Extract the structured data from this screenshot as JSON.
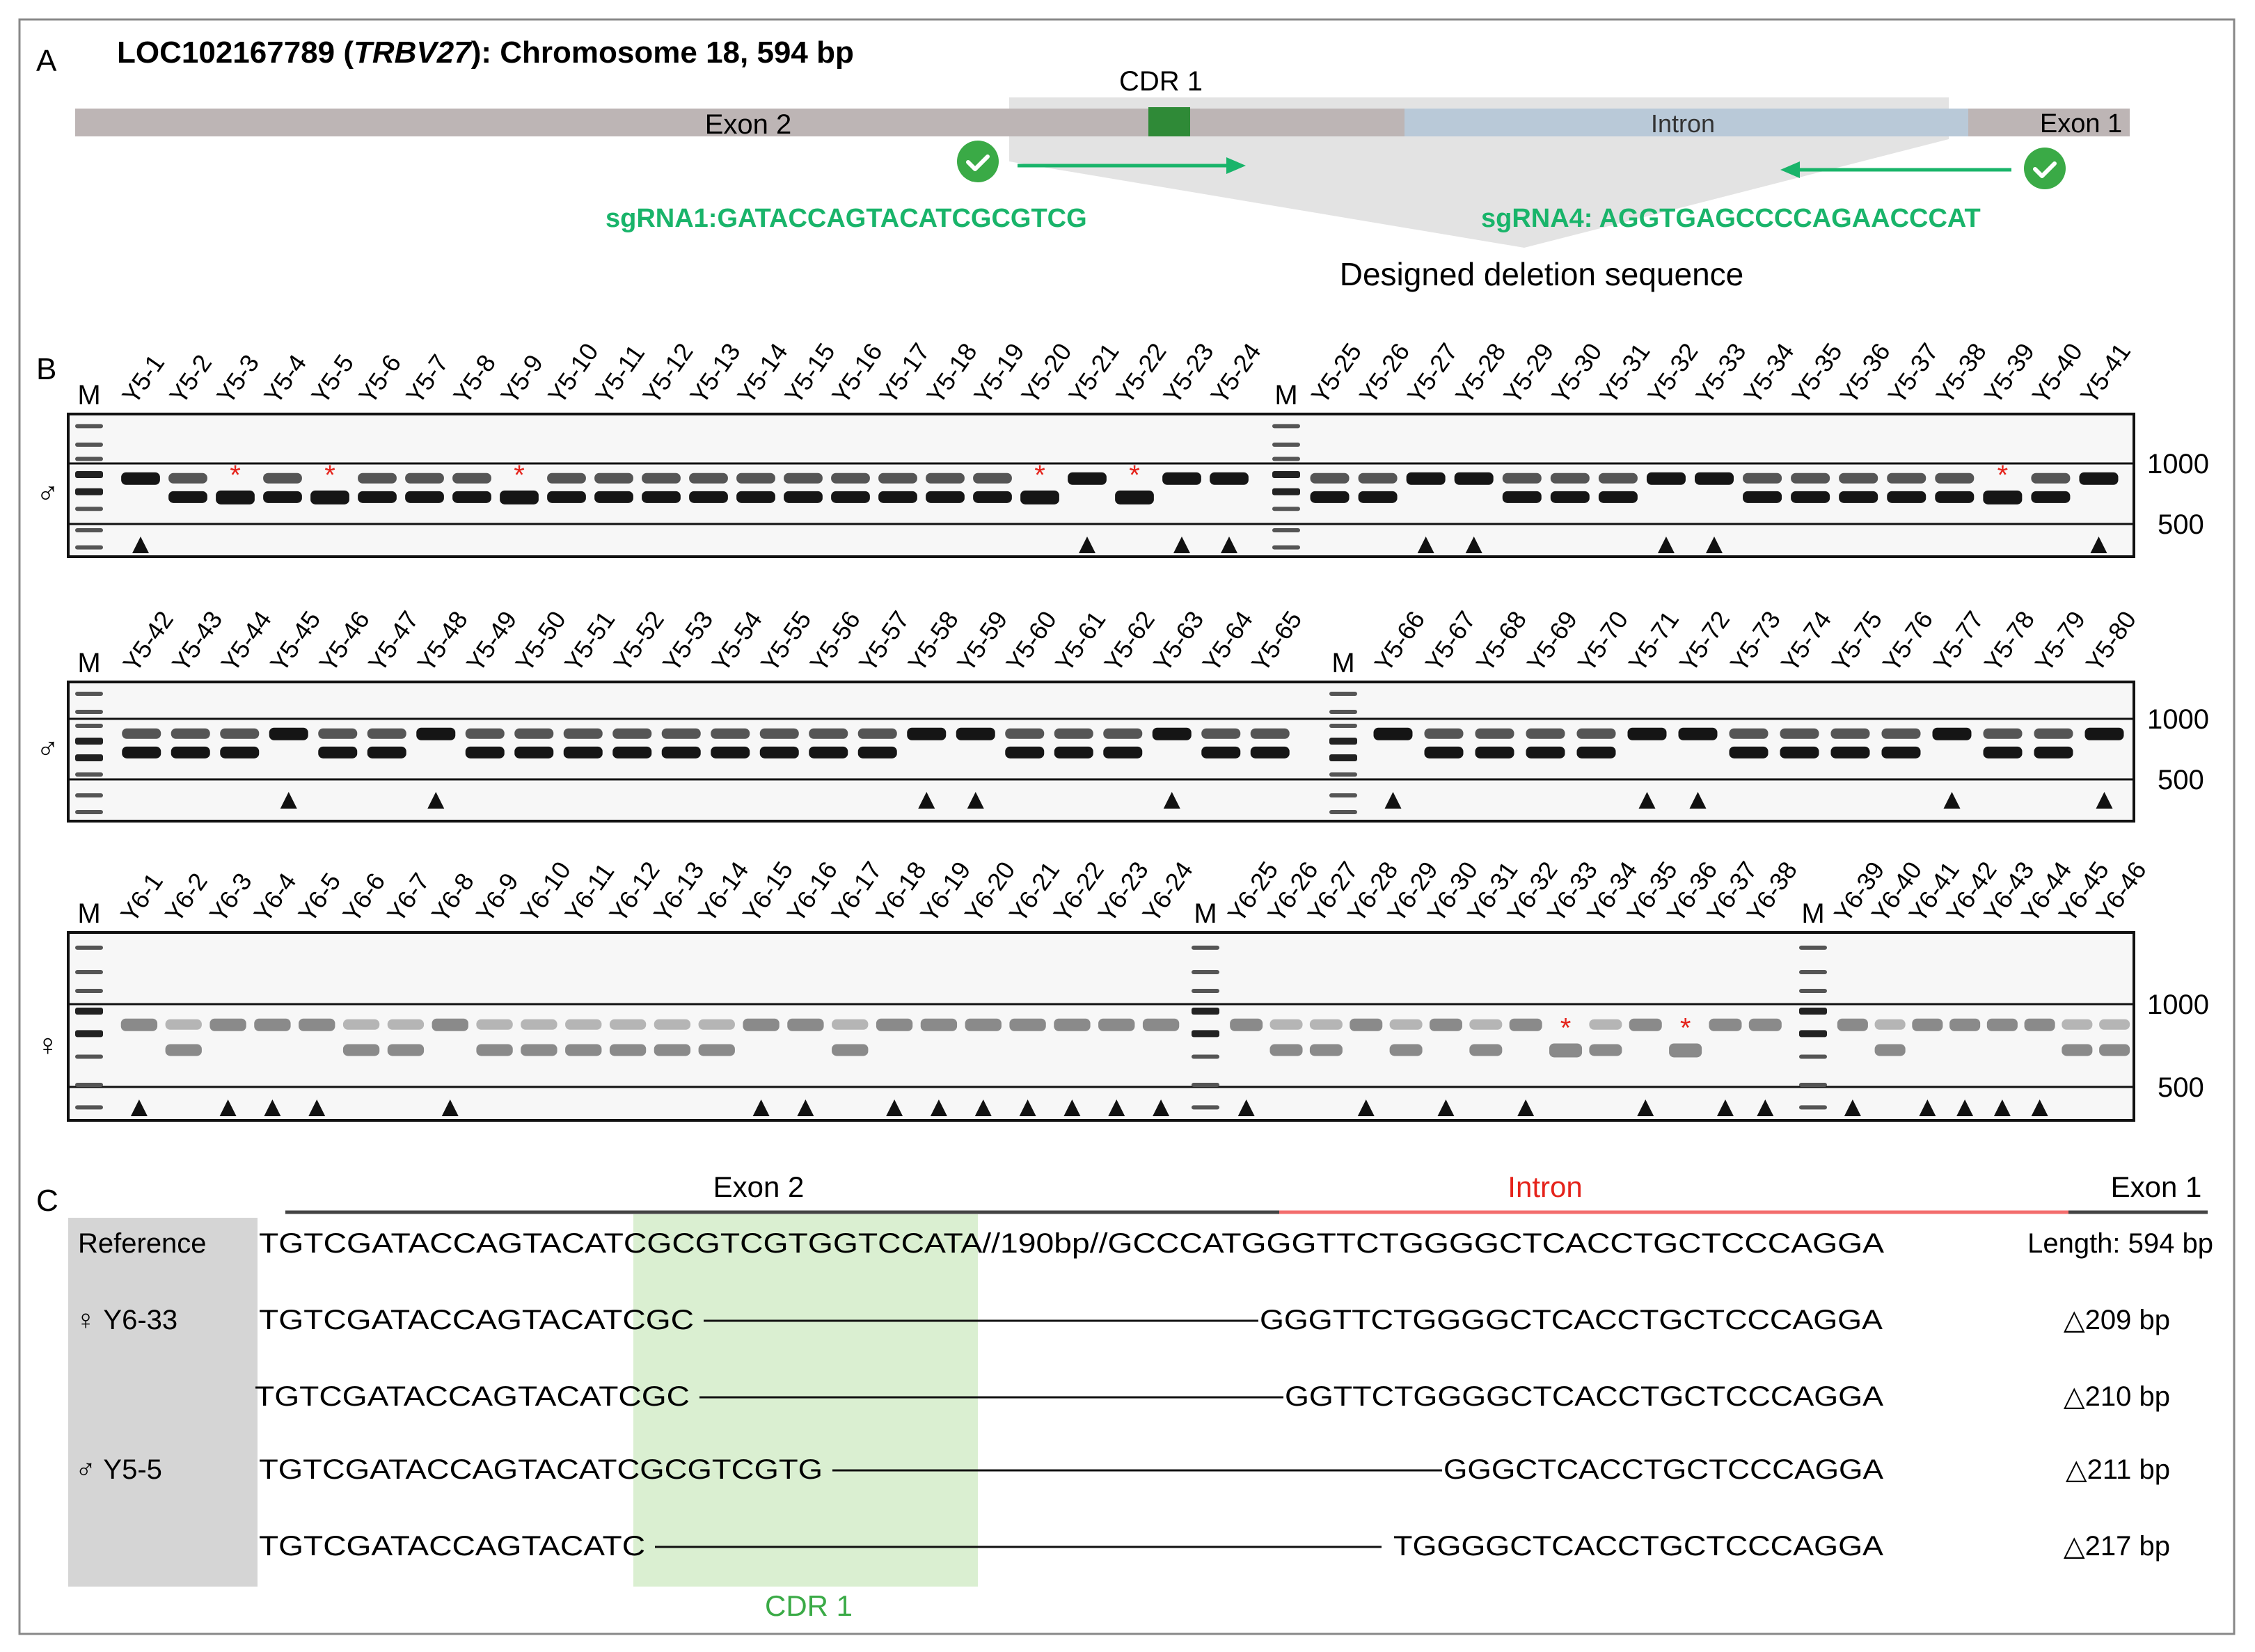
{
  "colors": {
    "sgrna_green": "#19b46a",
    "cdr_dark_green": "#2f8a37",
    "cdr_highlight": "#d4ecc9",
    "exon_gray": "#bdb5b5",
    "intron_blue": "#b9c9d8",
    "intron_red": "#f36d6d",
    "marker_red": "#e5231b"
  },
  "panel_a": {
    "label": "A",
    "title_prefix": "LOC102167789 (",
    "title_gene": "TRBV27",
    "title_suffix": "): Chromosome 18, 594 bp",
    "cdr_label": "CDR 1",
    "exon2_label": "Exon 2",
    "intron_label": "Intron",
    "exon1_label": "Exon 1",
    "sgrna1": "sgRNA1:GATACCAGTACATCGCGTCG",
    "sgrna4": "sgRNA4: AGGTGAGCCCCAGAACCCAT",
    "deletion_label": "Designed deletion sequence",
    "check_icon": "check-circle-icon"
  },
  "panel_b": {
    "label": "B",
    "marker_label": "M",
    "size_1000": "1000",
    "size_500": "500",
    "rows": [
      {
        "sex": "♂",
        "halves": [
          {
            "lanes": [
              "Y5-1",
              "Y5-2",
              "Y5-3",
              "Y5-4",
              "Y5-5",
              "Y5-6",
              "Y5-7",
              "Y5-8",
              "Y5-9",
              "Y5-10",
              "Y5-11",
              "Y5-12",
              "Y5-13",
              "Y5-14",
              "Y5-15",
              "Y5-16",
              "Y5-17",
              "Y5-18",
              "Y5-19",
              "Y5-20",
              "Y5-21",
              "Y5-22",
              "Y5-23",
              "Y5-24"
            ],
            "star_lanes": [
              3,
              5,
              9,
              20,
              22
            ],
            "triangle_lanes": [
              1,
              21,
              23,
              24
            ]
          },
          {
            "lanes": [
              "Y5-25",
              "Y5-26",
              "Y5-27",
              "Y5-28",
              "Y5-29",
              "Y5-30",
              "Y5-31",
              "Y5-32",
              "Y5-33",
              "Y5-34",
              "Y5-35",
              "Y5-36",
              "Y5-37",
              "Y5-38",
              "Y5-39",
              "Y5-40",
              "Y5-41"
            ],
            "star_lanes": [
              39
            ],
            "triangle_lanes": [
              27,
              28,
              32,
              33,
              41
            ]
          }
        ]
      },
      {
        "sex": "♂",
        "halves": [
          {
            "lanes": [
              "Y5-42",
              "Y5-43",
              "Y5-44",
              "Y5-45",
              "Y5-46",
              "Y5-47",
              "Y5-48",
              "Y5-49",
              "Y5-50",
              "Y5-51",
              "Y5-52",
              "Y5-53",
              "Y5-54",
              "Y5-55",
              "Y5-56",
              "Y5-57",
              "Y5-58",
              "Y5-59",
              "Y5-60",
              "Y5-61",
              "Y5-62",
              "Y5-63",
              "Y5-64",
              "Y5-65"
            ],
            "star_lanes": [],
            "triangle_lanes": [
              45,
              48,
              58,
              59,
              63
            ]
          },
          {
            "lanes": [
              "Y5-66",
              "Y5-67",
              "Y5-68",
              "Y5-69",
              "Y5-70",
              "Y5-71",
              "Y5-72",
              "Y5-73",
              "Y5-74",
              "Y5-75",
              "Y5-76",
              "Y5-77",
              "Y5-78",
              "Y5-79",
              "Y5-80"
            ],
            "star_lanes": [],
            "triangle_lanes": [
              66,
              71,
              72,
              77,
              80
            ]
          }
        ]
      },
      {
        "sex": "♀",
        "halves": [
          {
            "lanes": [
              "Y6-1",
              "Y6-2",
              "Y6-3",
              "Y6-4",
              "Y6-5",
              "Y6-6",
              "Y6-7",
              "Y6-8",
              "Y6-9",
              "Y6-10",
              "Y6-11",
              "Y6-12",
              "Y6-13",
              "Y6-14",
              "Y6-15",
              "Y6-16",
              "Y6-17",
              "Y6-18",
              "Y6-19",
              "Y6-20",
              "Y6-21",
              "Y6-22",
              "Y6-23",
              "Y6-24"
            ],
            "star_lanes": [],
            "triangle_lanes": [
              1,
              3,
              4,
              5,
              8,
              15,
              16,
              18,
              19,
              20,
              21,
              22,
              23,
              24
            ]
          },
          {
            "lanes": [
              "Y6-25",
              "Y6-26",
              "Y6-27",
              "Y6-28",
              "Y6-29",
              "Y6-30",
              "Y6-31",
              "Y6-32",
              "Y6-33",
              "Y6-34",
              "Y6-35",
              "Y6-36",
              "Y6-37",
              "Y6-38"
            ],
            "star_lanes": [
              33,
              36
            ],
            "triangle_lanes": [
              25,
              28,
              30,
              32,
              35,
              37,
              38
            ]
          },
          {
            "lanes": [
              "Y6-39",
              "Y6-40",
              "Y6-41",
              "Y6-42",
              "Y6-43",
              "Y6-44",
              "Y6-45",
              "Y6-46"
            ],
            "star_lanes": [],
            "triangle_lanes": [
              39,
              41,
              42,
              43,
              44
            ]
          }
        ]
      }
    ]
  },
  "panel_c": {
    "label": "C",
    "exon2_label": "Exon 2",
    "intron_label": "Intron",
    "exon1_label": "Exon 1",
    "reference_label": "Reference",
    "reference_left": "TGTCGATACCAGTACATCGCGTCGTGGTCCATA//190bp//GCCCATGGGTTCTGGGGCTCACCTGCTCCCAGGA",
    "reference_length": "Length: 594 bp",
    "cdr_label": "CDR 1",
    "sample_female": "♀ Y6-33",
    "sample_male": "♂ Y5-5",
    "alleles": [
      {
        "left": "TGTCGATACCAGTACATCGC",
        "right": "GGGTTCTGGGGCTCACCTGCTCCCAGGA",
        "deletion": "△209 bp"
      },
      {
        "left": "TGTCGATACCAGTACATCGC",
        "right": "GGTTCTGGGGCTCACCTGCTCCCAGGA",
        "deletion": "△210 bp"
      },
      {
        "left": "TGTCGATACCAGTACATCGCGTCGTG",
        "right": "GGGCTCACCTGCTCCCAGGA",
        "deletion": "△211 bp"
      },
      {
        "left": "TGTCGATACCAGTACATC",
        "right": "TGGGGCTCACCTGCTCCCAGGA",
        "deletion": "△217 bp"
      }
    ]
  }
}
